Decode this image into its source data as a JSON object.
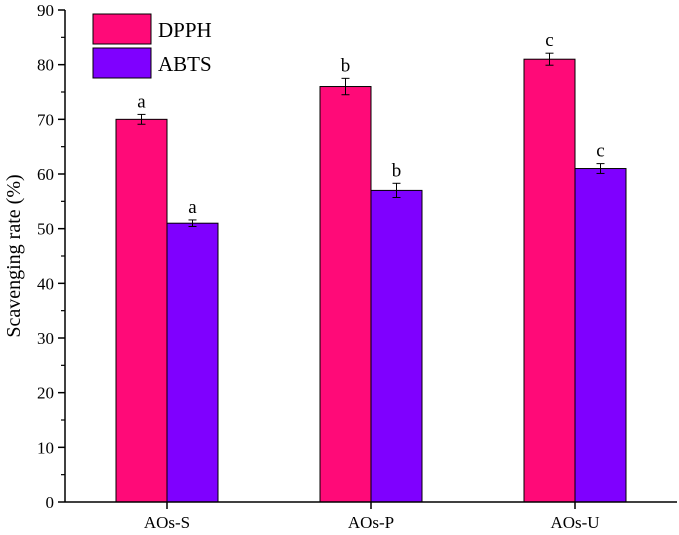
{
  "chart_data": {
    "type": "bar",
    "title": "",
    "xlabel": "",
    "ylabel": "Scavenging rate (%)",
    "ylim": [
      0,
      90
    ],
    "yticks": [
      0,
      10,
      20,
      30,
      40,
      50,
      60,
      70,
      80,
      90
    ],
    "categories": [
      "AOs-S",
      "AOs-P",
      "AOs-U"
    ],
    "series": [
      {
        "name": "DPPH",
        "color": "#ff0a78",
        "values": [
          70,
          76,
          81
        ],
        "errors": [
          0.9,
          1.5,
          1.1
        ],
        "labels": [
          "a",
          "b",
          "c"
        ]
      },
      {
        "name": "ABTS",
        "color": "#7f00ff",
        "values": [
          51,
          57,
          61
        ],
        "errors": [
          0.6,
          1.3,
          0.9
        ],
        "labels": [
          "a",
          "b",
          "c"
        ]
      }
    ],
    "legend": "top-left",
    "grid": false
  }
}
